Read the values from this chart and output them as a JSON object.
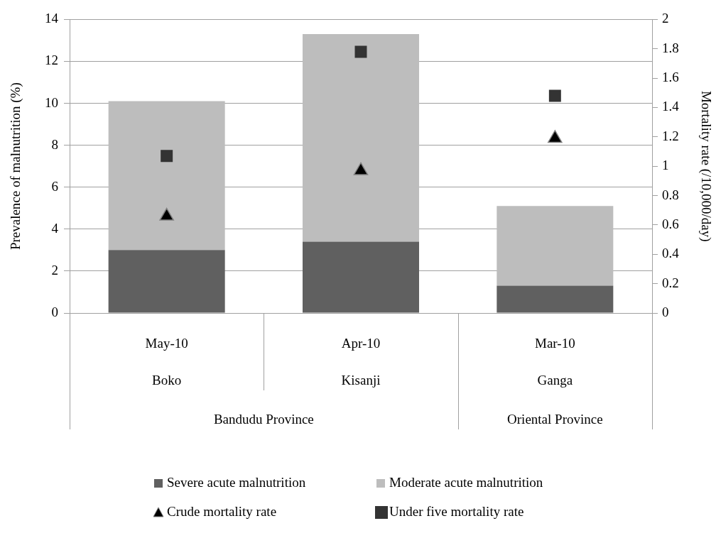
{
  "chart_data": {
    "type": "bar",
    "stacked": true,
    "categories": [
      "May-10",
      "Apr-10",
      "Mar-10"
    ],
    "series": [
      {
        "name": "Severe acute malnutrition",
        "color": "#606060",
        "values": [
          3.0,
          3.4,
          1.3
        ]
      },
      {
        "name": "Moderate acute malnutrition",
        "color": "#bdbdbd",
        "values": [
          7.1,
          9.9,
          3.8
        ]
      },
      {
        "name": "Crude mortality rate",
        "type": "scatter",
        "axis": "y2",
        "marker": "triangle",
        "color": "#000000",
        "x": [
          "May-10",
          "Apr-10",
          "Mar-10"
        ],
        "values": [
          0.66,
          0.97,
          1.19
        ]
      },
      {
        "name": "Under five mortality rate",
        "type": "scatter",
        "axis": "y2",
        "marker": "square",
        "color": "#333333",
        "x": [
          "May-10",
          "Apr-10",
          "Mar-10"
        ],
        "values": [
          1.07,
          1.78,
          1.48
        ]
      }
    ],
    "ylabel": "Prevalence of malnutrition (%)",
    "y2label": "Mortality rate (/10,000/day)",
    "ylim": [
      0,
      14
    ],
    "yticks": [
      0,
      2,
      4,
      6,
      8,
      10,
      12,
      14
    ],
    "y2lim": [
      0,
      2
    ],
    "y2ticks": [
      0,
      0.2,
      0.4,
      0.6,
      0.8,
      1,
      1.2,
      1.4,
      1.6,
      1.8,
      2
    ],
    "grid": "y",
    "legend": "bottom",
    "annotations": [
      "Boko",
      "Kisanji",
      "Ganga",
      "Bandudu Province",
      "Oriental Province"
    ]
  }
}
